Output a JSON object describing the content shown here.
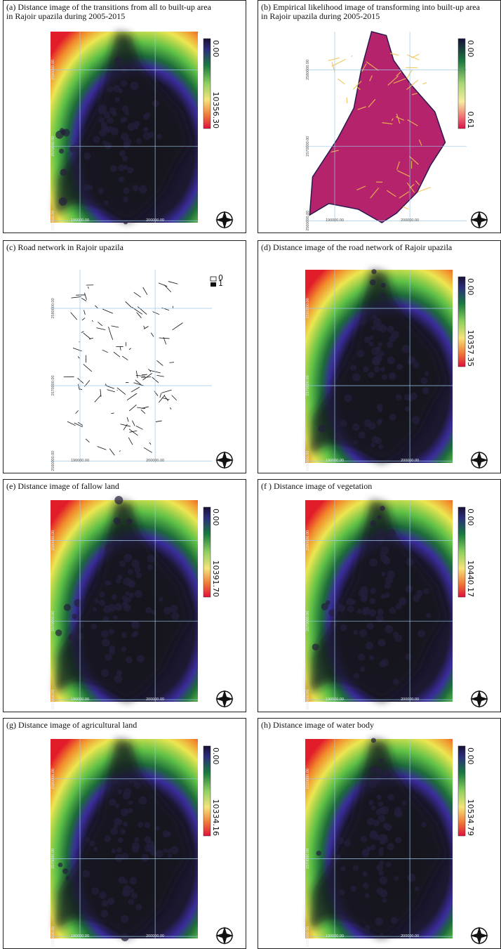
{
  "panels": [
    {
      "caption": [
        "(a) Distance image of the transitions from all to built-up area",
        "in Rajoir upazila during 2005-2015"
      ],
      "legend": [
        "0.00",
        "10356.30"
      ],
      "ylabels": [
        "2580000.00",
        "2570000.00",
        "2560000.00"
      ],
      "xlabels": [
        "190000.00",
        "200000.00"
      ]
    },
    {
      "caption": [
        "(b) Empirical likelihood image of transforming into built-up area",
        "in Rajoir upazila during 2005-2015"
      ],
      "legend": [
        "0.00",
        "0.61"
      ],
      "ylabels": [
        "2580000.00",
        "2570000.00",
        "2560000.00"
      ],
      "xlabels": [
        "190000.00",
        "200000.00"
      ]
    },
    {
      "caption": [
        "(c) Road network in Rajoir upazila"
      ],
      "legend": [
        "0",
        "1"
      ],
      "ylabels": [
        "2580000.00",
        "2570000.00",
        "2560000.00"
      ],
      "xlabels": [
        "190000.00",
        "200000.00"
      ]
    },
    {
      "caption": [
        "(d) Distance image of the road network of Rajoir upazila"
      ],
      "legend": [
        "0.00",
        "10357.35"
      ],
      "ylabels": [
        "2580000.00",
        "2570000.00",
        "2560000.00"
      ],
      "xlabels": [
        "190000.00",
        "200000.00"
      ]
    },
    {
      "caption": [
        "(e) Distance image of fallow land"
      ],
      "legend": [
        "0.00",
        "10391.70"
      ],
      "ylabels": [
        "2580000.00",
        "2570000.00",
        "2560000.00"
      ],
      "xlabels": [
        "190000.00",
        "200000.00"
      ]
    },
    {
      "caption": [
        "(f ) Distance image of vegetation"
      ],
      "legend": [
        "0.00",
        "10440.17"
      ],
      "ylabels": [
        "2580000.00",
        "2570000.00",
        "2560000.00"
      ],
      "xlabels": [
        "190000.00",
        "200000.00"
      ]
    },
    {
      "caption": [
        "(g) Distance image of agricultural land"
      ],
      "legend": [
        "0.00",
        "10334.16"
      ],
      "ylabels": [
        "2580000.00",
        "2570000.00",
        "2560000.00"
      ],
      "xlabels": [
        "190000.00",
        "200000.00"
      ]
    },
    {
      "caption": [
        "(h) Distance image of water body"
      ],
      "legend": [
        "0.00",
        "10534.79"
      ],
      "ylabels": [
        "2580000.00",
        "2570000.00",
        "2560000.00"
      ],
      "xlabels": [
        "190000.00",
        "200000.00"
      ]
    }
  ]
}
